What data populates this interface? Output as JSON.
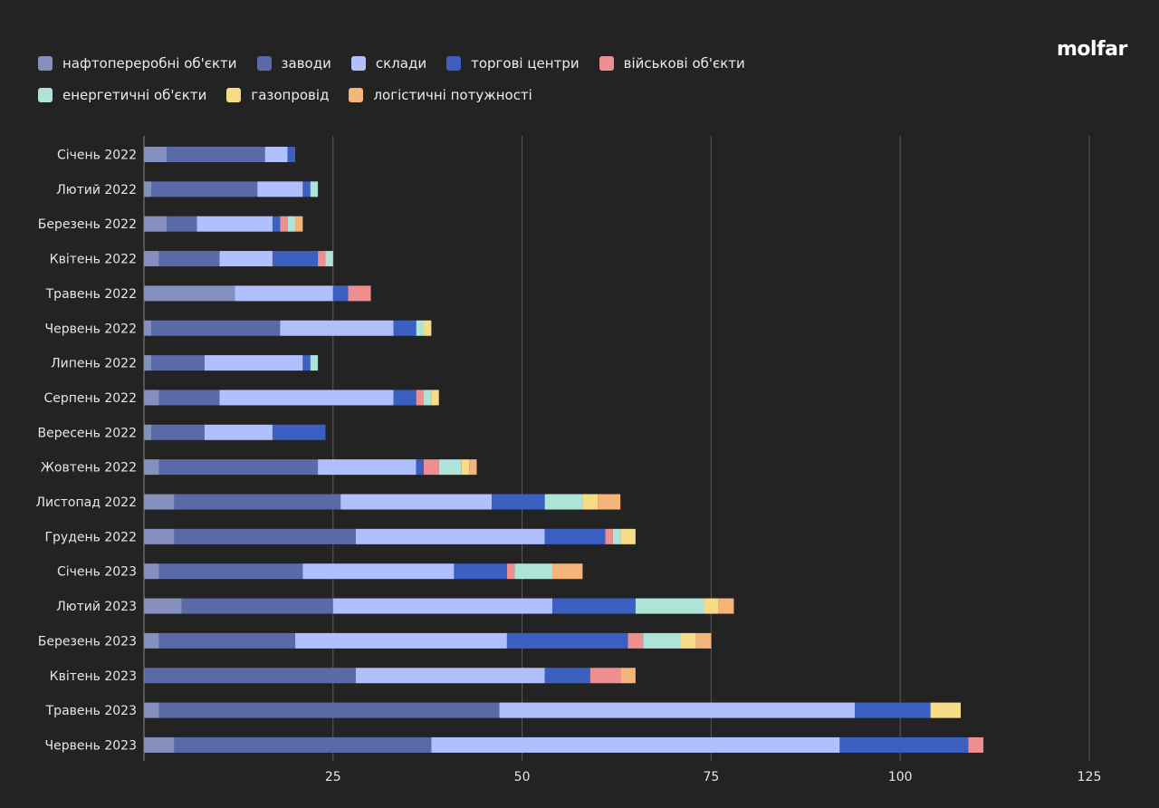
{
  "logo": "molfar",
  "chart_data": {
    "type": "bar",
    "orientation": "horizontal",
    "stacked": true,
    "title": "",
    "xlabel": "",
    "ylabel": "",
    "xlim": [
      0,
      125
    ],
    "xticks": [
      25,
      50,
      75,
      100,
      125
    ],
    "grid": true,
    "legend_position": "top-left",
    "categories": [
      "Січень 2022",
      "Лютий 2022",
      "Березень 2022",
      "Квітень 2022",
      "Травень 2022",
      "Червень 2022",
      "Липень 2022",
      "Серпень 2022",
      "Вересень 2022",
      "Жовтень 2022",
      "Листопад 2022",
      "Грудень 2022",
      "Січень 2023",
      "Лютий 2023",
      "Березень 2023",
      "Квітень 2023",
      "Травень 2023",
      "Червень 2023"
    ],
    "series": [
      {
        "name": "нафтопереробні об'єкти",
        "color": "#8590bf",
        "values": [
          3,
          1,
          3,
          2,
          12,
          1,
          1,
          2,
          1,
          2,
          4,
          4,
          2,
          5,
          2,
          0,
          2,
          4
        ]
      },
      {
        "name": "заводи",
        "color": "#5a6aa8",
        "values": [
          13,
          14,
          4,
          8,
          0,
          17,
          7,
          8,
          7,
          21,
          22,
          24,
          19,
          20,
          18,
          28,
          45,
          34
        ]
      },
      {
        "name": "склади",
        "color": "#b0c0ff",
        "values": [
          3,
          6,
          10,
          7,
          13,
          15,
          13,
          23,
          9,
          13,
          20,
          25,
          20,
          29,
          28,
          25,
          47,
          54
        ]
      },
      {
        "name": "торгові центри",
        "color": "#3c5fc2",
        "values": [
          1,
          1,
          1,
          6,
          2,
          3,
          1,
          3,
          7,
          1,
          7,
          8,
          7,
          11,
          16,
          6,
          10,
          17
        ]
      },
      {
        "name": "військові об'єкти",
        "color": "#ee8e8e",
        "values": [
          0,
          0,
          1,
          1,
          3,
          0,
          0,
          1,
          0,
          2,
          0,
          1,
          1,
          0,
          2,
          4,
          0,
          2
        ]
      },
      {
        "name": "енергетичні об'єкти",
        "color": "#aee3d8",
        "values": [
          0,
          1,
          1,
          1,
          0,
          1,
          1,
          1,
          0,
          3,
          5,
          1,
          5,
          9,
          5,
          0,
          0,
          0
        ]
      },
      {
        "name": "газопровід",
        "color": "#f6dc86",
        "values": [
          0,
          0,
          0,
          0,
          0,
          1,
          0,
          1,
          0,
          1,
          2,
          2,
          0,
          2,
          2,
          0,
          4,
          0
        ]
      },
      {
        "name": "логістичні потужності",
        "color": "#f5b47a",
        "values": [
          0,
          0,
          1,
          0,
          0,
          0,
          0,
          0,
          0,
          1,
          3,
          0,
          4,
          2,
          2,
          2,
          0,
          0
        ]
      }
    ]
  }
}
